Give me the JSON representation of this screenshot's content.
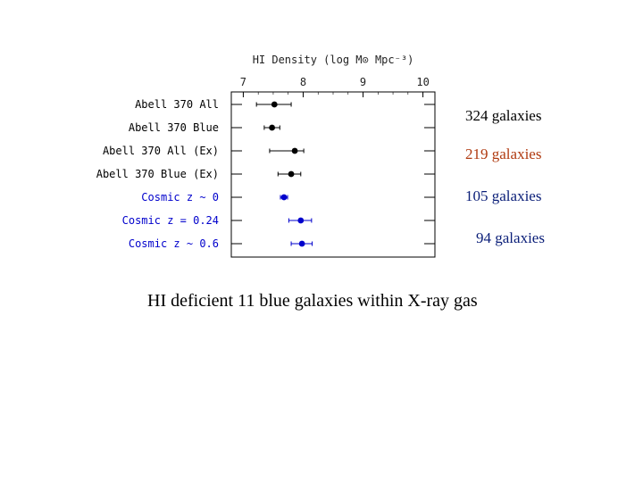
{
  "chart_data": {
    "type": "scatter",
    "title": "HI Density (log M⊙ Mpc⁻³)",
    "xlim": [
      6.8,
      10.2
    ],
    "x_ticks": [
      "7",
      "8",
      "9",
      "10"
    ],
    "x_tick_values": [
      7,
      8,
      9,
      10
    ],
    "rows": [
      {
        "label": "Abell 370 All",
        "value": 7.52,
        "err_lo": 0.3,
        "err_hi": 0.28,
        "color": "#000000"
      },
      {
        "label": "Abell 370 Blue",
        "value": 7.48,
        "err_lo": 0.13,
        "err_hi": 0.13,
        "color": "#000000"
      },
      {
        "label": "Abell 370 All (Ex)",
        "value": 7.86,
        "err_lo": 0.42,
        "err_hi": 0.15,
        "color": "#000000"
      },
      {
        "label": "Abell 370 Blue (Ex)",
        "value": 7.8,
        "err_lo": 0.22,
        "err_hi": 0.16,
        "color": "#000000"
      },
      {
        "label": "Cosmic z ~ 0",
        "value": 7.68,
        "err_lo": 0.06,
        "err_hi": 0.06,
        "color": "#0000cc"
      },
      {
        "label": "Cosmic z = 0.24",
        "value": 7.96,
        "err_lo": 0.2,
        "err_hi": 0.18,
        "color": "#0000cc"
      },
      {
        "label": "Cosmic z ~ 0.6",
        "value": 7.98,
        "err_lo": 0.18,
        "err_hi": 0.17,
        "color": "#0000cc"
      }
    ],
    "label_colors": {
      "abell": "#000000",
      "cosmic": "#0000cc"
    }
  },
  "annotations": {
    "notes": [
      "324 galaxies",
      "219 galaxies",
      "105 galaxies",
      "94 galaxies"
    ],
    "caption": "HI deficient 11 blue galaxies within X-ray gas"
  }
}
